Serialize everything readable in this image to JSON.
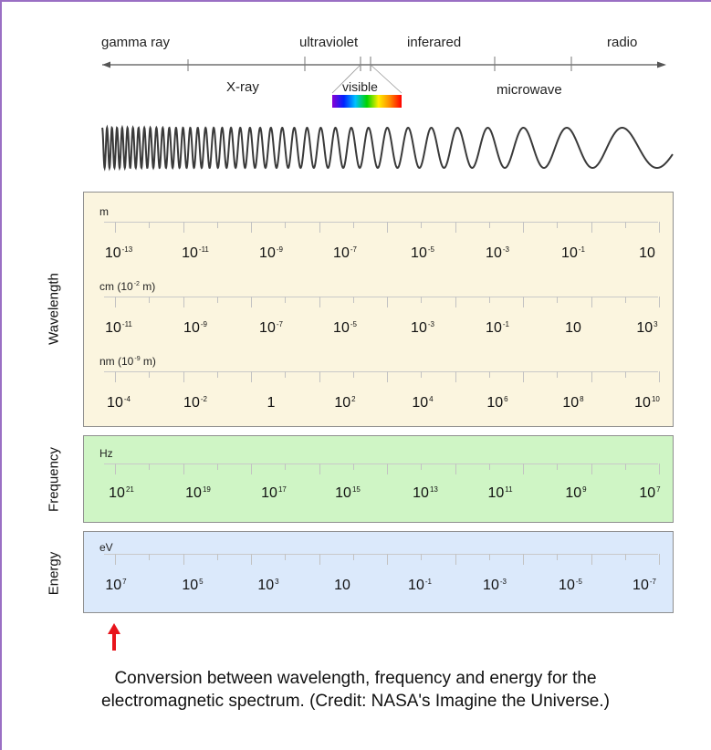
{
  "bands_top": [
    {
      "label": "gamma ray"
    },
    {
      "label": "ultraviolet"
    },
    {
      "label": "inferared"
    },
    {
      "label": "radio"
    }
  ],
  "bands_bottom": [
    {
      "label": "X-ray"
    },
    {
      "label": "visible"
    },
    {
      "label": "microwave"
    }
  ],
  "visible_colors": [
    "#8a00d4",
    "#0022ff",
    "#00c0ff",
    "#00d400",
    "#ffee00",
    "#ff8800",
    "#ff0000"
  ],
  "wavelength": {
    "side_label": "Wavelength",
    "rows": [
      {
        "unit": "m",
        "unit_exp": "",
        "unit_tail": "",
        "values": [
          {
            "base": "10",
            "exp": "-13"
          },
          {
            "base": "10",
            "exp": "-11"
          },
          {
            "base": "10",
            "exp": "-9"
          },
          {
            "base": "10",
            "exp": "-7"
          },
          {
            "base": "10",
            "exp": "-5"
          },
          {
            "base": "10",
            "exp": "-3"
          },
          {
            "base": "10",
            "exp": "-1"
          },
          {
            "base": "10",
            "exp": ""
          }
        ]
      },
      {
        "unit": "cm (10",
        "unit_exp": "-2",
        "unit_tail": " m)",
        "values": [
          {
            "base": "10",
            "exp": "-11"
          },
          {
            "base": "10",
            "exp": "-9"
          },
          {
            "base": "10",
            "exp": "-7"
          },
          {
            "base": "10",
            "exp": "-5"
          },
          {
            "base": "10",
            "exp": "-3"
          },
          {
            "base": "10",
            "exp": "-1"
          },
          {
            "base": "10",
            "exp": ""
          },
          {
            "base": "10",
            "exp": "3"
          }
        ]
      },
      {
        "unit": "nm (10",
        "unit_exp": "-9",
        "unit_tail": " m)",
        "values": [
          {
            "base": "10",
            "exp": "-4"
          },
          {
            "base": "10",
            "exp": "-2"
          },
          {
            "base": "1",
            "exp": ""
          },
          {
            "base": "10",
            "exp": "2"
          },
          {
            "base": "10",
            "exp": "4"
          },
          {
            "base": "10",
            "exp": "6"
          },
          {
            "base": "10",
            "exp": "8"
          },
          {
            "base": "10",
            "exp": "10"
          }
        ]
      }
    ]
  },
  "frequency": {
    "side_label": "Frequency",
    "unit": "Hz",
    "values": [
      {
        "base": "10",
        "exp": "21"
      },
      {
        "base": "10",
        "exp": "19"
      },
      {
        "base": "10",
        "exp": "17"
      },
      {
        "base": "10",
        "exp": "15"
      },
      {
        "base": "10",
        "exp": "13"
      },
      {
        "base": "10",
        "exp": "11"
      },
      {
        "base": "10",
        "exp": "9"
      },
      {
        "base": "10",
        "exp": "7"
      }
    ]
  },
  "energy": {
    "side_label": "Energy",
    "unit": "eV",
    "values": [
      {
        "base": "10",
        "exp": "7"
      },
      {
        "base": "10",
        "exp": "5"
      },
      {
        "base": "10",
        "exp": "3"
      },
      {
        "base": "10",
        "exp": ""
      },
      {
        "base": "10",
        "exp": "-1"
      },
      {
        "base": "10",
        "exp": "-3"
      },
      {
        "base": "10",
        "exp": "-5"
      },
      {
        "base": "10",
        "exp": "-7"
      }
    ]
  },
  "marker_color": "#e8141b",
  "caption_line1": "Conversion between wavelength, frequency and energy for the",
  "caption_line2": "electromagnetic spectrum. (Credit: NASA's Imagine the Universe.)"
}
